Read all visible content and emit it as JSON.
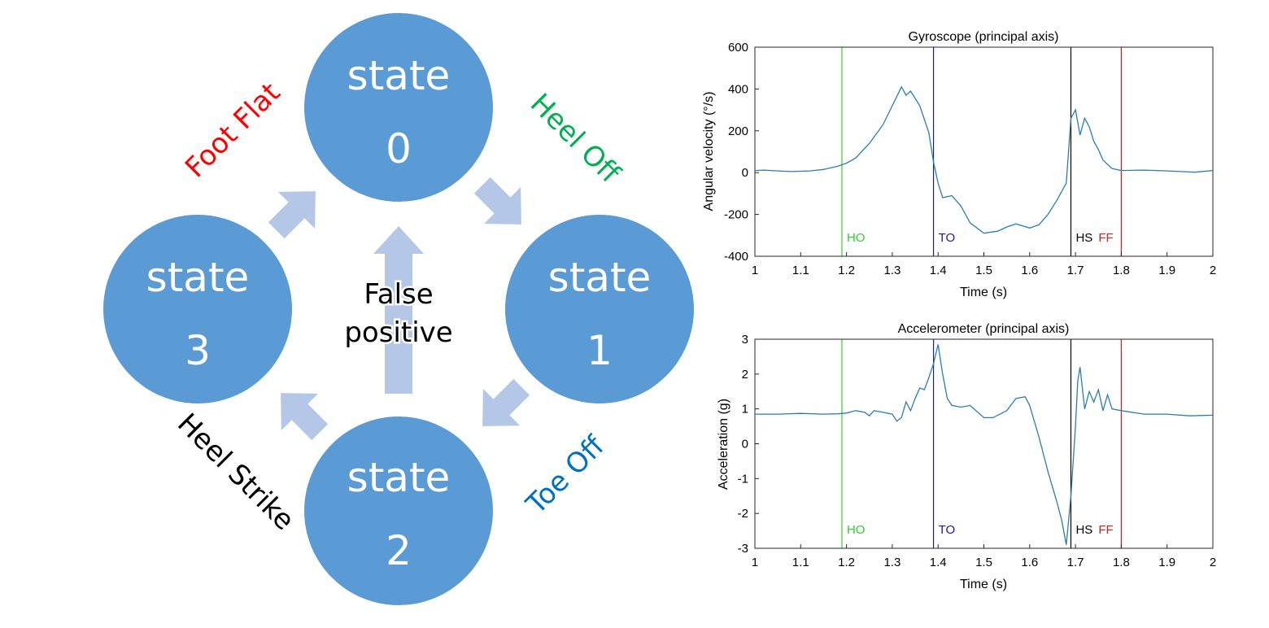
{
  "diagram": {
    "state_word": "state",
    "states": [
      {
        "number": "0"
      },
      {
        "number": "1"
      },
      {
        "number": "2"
      },
      {
        "number": "3"
      }
    ],
    "false_positive_line1": "False",
    "false_positive_line2": "positive",
    "transitions": {
      "heel_off": {
        "label": "Heel Off",
        "color": "#00b050"
      },
      "toe_off": {
        "label": "Toe Off",
        "color": "#0070c0"
      },
      "heel_strike": {
        "label": "Heel Strike",
        "color": "#000000"
      },
      "foot_flat": {
        "label": "Foot Flat",
        "color": "#ff0000"
      }
    },
    "colors": {
      "circle": "#5b9bd5",
      "arrow": "#b4c7e7"
    }
  },
  "chart_data": [
    {
      "type": "line",
      "title": "Gyroscope (principal axis)",
      "xlabel": "Time (s)",
      "ylabel": "Angular velocity (°/s)",
      "xlim": [
        1,
        2
      ],
      "ylim": [
        -400,
        600
      ],
      "xticks": [
        "1",
        "1.1",
        "1.2",
        "1.3",
        "1.4",
        "1.5",
        "1.6",
        "1.7",
        "1.8",
        "1.9",
        "2"
      ],
      "yticks": [
        "600",
        "400",
        "200",
        "0",
        "-200",
        "-400"
      ],
      "line_color": "#2a7fb0",
      "x": [
        1.0,
        1.02,
        1.05,
        1.08,
        1.12,
        1.15,
        1.18,
        1.2,
        1.22,
        1.25,
        1.28,
        1.3,
        1.32,
        1.33,
        1.34,
        1.36,
        1.38,
        1.39,
        1.4,
        1.41,
        1.43,
        1.45,
        1.47,
        1.5,
        1.53,
        1.55,
        1.57,
        1.6,
        1.62,
        1.64,
        1.66,
        1.68,
        1.69,
        1.7,
        1.71,
        1.72,
        1.73,
        1.74,
        1.75,
        1.76,
        1.78,
        1.8,
        1.85,
        1.9,
        1.93,
        1.96,
        2.0
      ],
      "y": [
        10,
        12,
        8,
        5,
        8,
        15,
        30,
        45,
        70,
        140,
        230,
        320,
        410,
        370,
        390,
        320,
        190,
        50,
        -50,
        -120,
        -110,
        -160,
        -240,
        -290,
        -280,
        -260,
        -245,
        -265,
        -250,
        -200,
        -130,
        -50,
        260,
        300,
        180,
        260,
        220,
        150,
        110,
        60,
        20,
        10,
        12,
        8,
        5,
        2,
        10
      ],
      "events": [
        {
          "label": "HO",
          "x": 1.19,
          "color": "#33cc33"
        },
        {
          "label": "TO",
          "x": 1.39,
          "color": "#1a1aaa"
        },
        {
          "label": "HS",
          "x": 1.69,
          "color": "#000000"
        },
        {
          "label": "FF",
          "x": 1.8,
          "color": "#cc2222"
        }
      ]
    },
    {
      "type": "line",
      "title": "Accelerometer (principal axis)",
      "xlabel": "Time (s)",
      "ylabel": "Acceleration (g)",
      "xlim": [
        1,
        2
      ],
      "ylim": [
        -3,
        3
      ],
      "xticks": [
        "1",
        "1.1",
        "1.2",
        "1.3",
        "1.4",
        "1.5",
        "1.6",
        "1.7",
        "1.8",
        "1.9",
        "2"
      ],
      "yticks": [
        "3",
        "2",
        "1",
        "0",
        "-1",
        "-2",
        "-3"
      ],
      "line_color": "#2a7fb0",
      "x": [
        1.0,
        1.05,
        1.1,
        1.15,
        1.18,
        1.2,
        1.22,
        1.24,
        1.25,
        1.26,
        1.28,
        1.3,
        1.31,
        1.32,
        1.33,
        1.34,
        1.35,
        1.36,
        1.37,
        1.38,
        1.39,
        1.4,
        1.41,
        1.42,
        1.43,
        1.45,
        1.47,
        1.5,
        1.52,
        1.55,
        1.57,
        1.59,
        1.6,
        1.62,
        1.64,
        1.66,
        1.67,
        1.68,
        1.69,
        1.7,
        1.705,
        1.71,
        1.72,
        1.73,
        1.74,
        1.75,
        1.76,
        1.77,
        1.78,
        1.8,
        1.85,
        1.9,
        1.95,
        2.0
      ],
      "y": [
        0.85,
        0.85,
        0.87,
        0.85,
        0.86,
        0.88,
        0.95,
        0.9,
        0.8,
        0.95,
        0.9,
        0.85,
        0.65,
        0.75,
        1.2,
        0.95,
        1.3,
        1.6,
        1.55,
        1.9,
        2.3,
        2.85,
        2.0,
        1.3,
        1.1,
        1.05,
        1.1,
        0.75,
        0.75,
        0.95,
        1.3,
        1.35,
        1.1,
        0.2,
        -0.8,
        -1.7,
        -2.2,
        -2.9,
        -1.5,
        0.5,
        1.8,
        2.2,
        1.0,
        1.5,
        1.2,
        1.55,
        0.95,
        1.4,
        1.0,
        0.95,
        0.85,
        0.85,
        0.8,
        0.82
      ],
      "events": [
        {
          "label": "HO",
          "x": 1.19,
          "color": "#33cc33"
        },
        {
          "label": "TO",
          "x": 1.39,
          "color": "#1a1aaa"
        },
        {
          "label": "HS",
          "x": 1.69,
          "color": "#000000"
        },
        {
          "label": "FF",
          "x": 1.8,
          "color": "#cc2222"
        }
      ]
    }
  ]
}
